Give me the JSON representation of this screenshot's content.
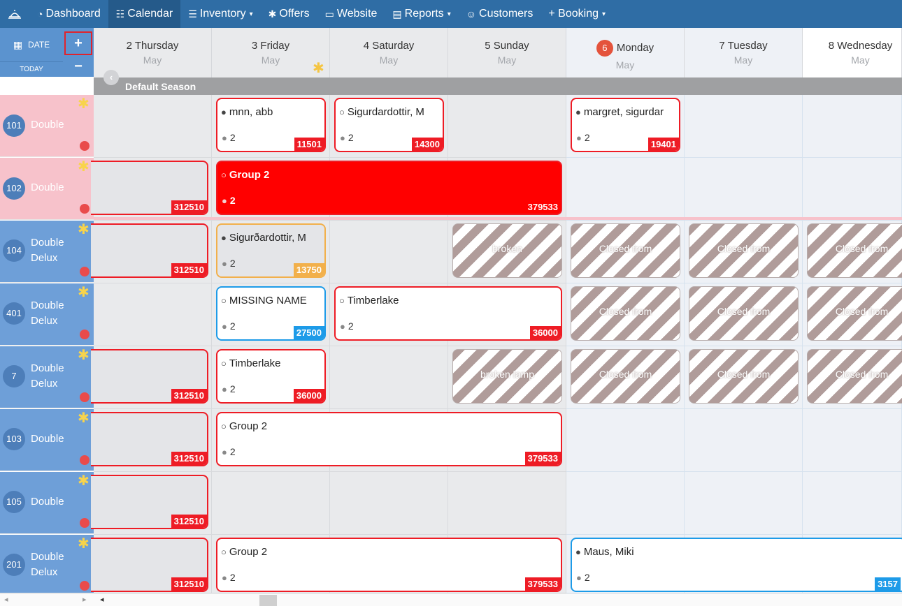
{
  "nav": {
    "items": [
      {
        "label": "Dashboard",
        "icon": "dashboard-icon",
        "glyph": "◔"
      },
      {
        "label": "Calendar",
        "icon": "calendar-grid-icon",
        "glyph": "☷",
        "active": true
      },
      {
        "label": "Inventory",
        "icon": "database-icon",
        "glyph": "☰",
        "caret": true
      },
      {
        "label": "Offers",
        "icon": "gear-icon",
        "glyph": "✱"
      },
      {
        "label": "Website",
        "icon": "monitor-icon",
        "glyph": "▭"
      },
      {
        "label": "Reports",
        "icon": "file-icon",
        "glyph": "▤",
        "caret": true
      },
      {
        "label": "Customers",
        "icon": "users-icon",
        "glyph": "☺"
      },
      {
        "label": "+ Booking",
        "icon": "",
        "glyph": "",
        "caret": true
      }
    ]
  },
  "controls": {
    "date_label": "DATE",
    "today_label": "TODAY",
    "plus_label": "+",
    "minus_label": "−"
  },
  "days": [
    {
      "name": "2 Thursday",
      "month": "May"
    },
    {
      "name": "3 Friday",
      "month": "May"
    },
    {
      "name": "4 Saturday",
      "month": "May"
    },
    {
      "name": "5 Sunday",
      "month": "May"
    },
    {
      "name": "Monday",
      "badge": "6",
      "month": "May"
    },
    {
      "name": "7 Tuesday",
      "month": "May"
    },
    {
      "name": "8 Wednesday",
      "month": "May"
    }
  ],
  "season": {
    "title": "Default Season"
  },
  "rooms": [
    {
      "number": "101",
      "type_line1": "Double",
      "type_line2": ""
    },
    {
      "number": "102",
      "type_line1": "Double",
      "type_line2": ""
    },
    {
      "number": "104",
      "type_line1": "Double",
      "type_line2": "Delux"
    },
    {
      "number": "401",
      "type_line1": "Double",
      "type_line2": "Delux"
    },
    {
      "number": "7",
      "type_line1": "Double",
      "type_line2": "Delux"
    },
    {
      "number": "103",
      "type_line1": "Double",
      "type_line2": ""
    },
    {
      "number": "105",
      "type_line1": "Double",
      "type_line2": ""
    },
    {
      "number": "201",
      "type_line1": "Double",
      "type_line2": "Delux"
    }
  ],
  "bookings": [
    {
      "name": "mnn, abb",
      "guests": "2",
      "ref": "11501"
    },
    {
      "name": "Sigurdardottir, M",
      "guests": "2",
      "ref": "14300"
    },
    {
      "name": "margret, sigurdar",
      "guests": "2",
      "ref": "19401"
    },
    {
      "name": "",
      "guests": "",
      "ref": "312510"
    },
    {
      "name": "Group 2",
      "guests": "2",
      "ref": "379533"
    },
    {
      "name": "",
      "guests": "",
      "ref": "312510"
    },
    {
      "name": "Sigurðardottir, M",
      "guests": "2",
      "ref": "13750"
    },
    {
      "name": "MISSING NAME",
      "guests": "2",
      "ref": "27500"
    },
    {
      "name": "Timberlake",
      "guests": "2",
      "ref": "36000"
    },
    {
      "name": "",
      "guests": "",
      "ref": "312510"
    },
    {
      "name": "Timberlake",
      "guests": "2",
      "ref": "36000"
    },
    {
      "name": "",
      "guests": "",
      "ref": "312510"
    },
    {
      "name": "Group 2",
      "guests": "2",
      "ref": "379533"
    },
    {
      "name": "",
      "guests": "",
      "ref": "312510"
    },
    {
      "name": "",
      "guests": "",
      "ref": "312510"
    },
    {
      "name": "Group 2",
      "guests": "2",
      "ref": "379533"
    },
    {
      "name": "Maus, Miki",
      "guests": "2",
      "ref": "3157"
    }
  ],
  "closures": [
    {
      "label": "broken"
    },
    {
      "label": "Closed from"
    },
    {
      "label": "Closed from"
    },
    {
      "label": "Closed from"
    },
    {
      "label": "Closed from"
    },
    {
      "label": "Closed from"
    },
    {
      "label": "Closed from"
    },
    {
      "label": "broken lamp"
    },
    {
      "label": "Closed from"
    },
    {
      "label": "Closed from"
    },
    {
      "label": "Closed from"
    }
  ],
  "colors": {
    "nav": "#2f6da5",
    "booking_border": "#ee1c25",
    "today_badge": "#e4533c",
    "room_pink": "#f7c2cb",
    "room_blue": "#6e9fd8"
  }
}
